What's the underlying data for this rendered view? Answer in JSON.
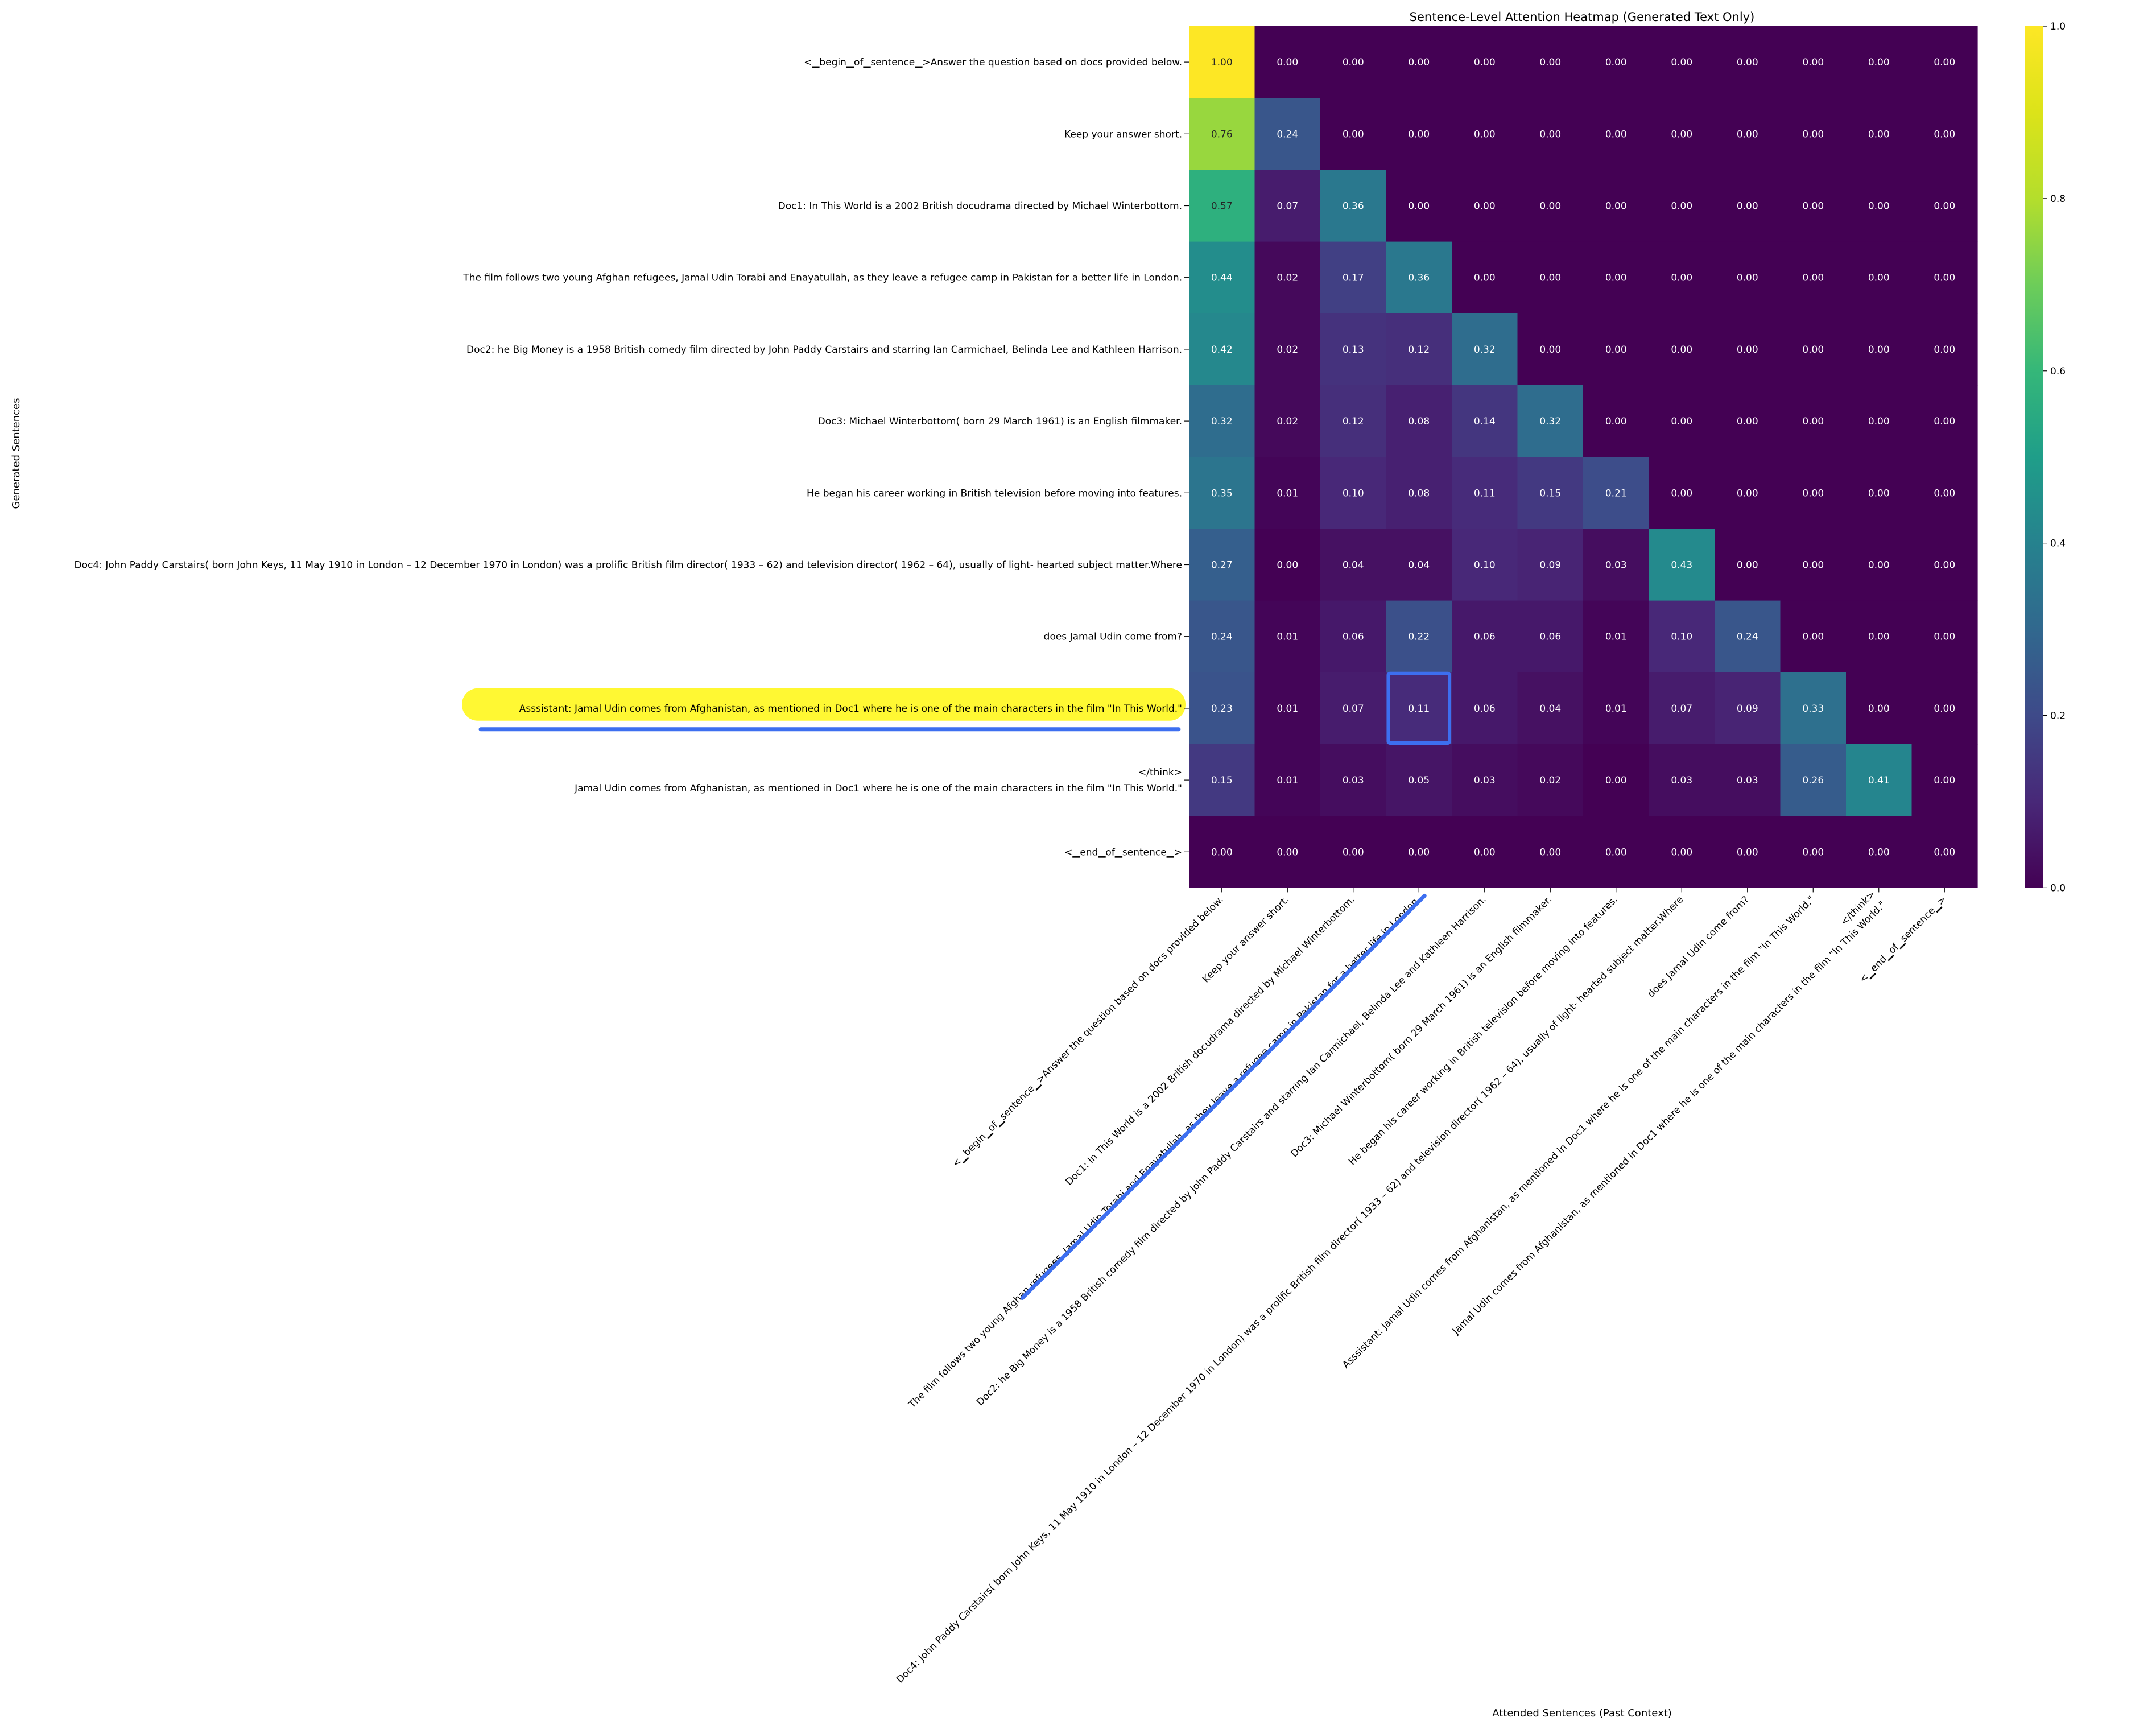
{
  "chart_data": {
    "type": "heatmap",
    "title": "Sentence-Level Attention Heatmap (Generated Text Only)",
    "xlabel": "Attended Sentences (Past Context)",
    "ylabel": "Generated Sentences",
    "row_labels": [
      "<▁begin▁of▁sentence▁>Answer the question based on docs provided below.",
      "Keep your answer short.",
      "Doc1: In This World is a 2002 British docudrama directed by Michael Winterbottom.",
      "The film follows two young Afghan refugees, Jamal Udin Torabi and Enayatullah, as they leave a refugee camp in Pakistan for a better life in London.",
      "Doc2: he Big Money is a 1958 British comedy film directed by John Paddy Carstairs and starring Ian Carmichael, Belinda Lee and Kathleen Harrison.",
      "Doc3: Michael Winterbottom( born 29 March 1961) is an English filmmaker.",
      "He began his career working in British television before moving into features.",
      "Doc4: John Paddy Carstairs( born John Keys, 11 May 1910 in London – 12 December 1970 in London) was a prolific British film director( 1933 – 62) and television director( 1962 – 64), usually of light- hearted subject matter.Where",
      "does Jamal Udin come from?",
      "Asssistant:  Jamal Udin comes from Afghanistan, as mentioned in Doc1 where he is one of the main characters in the film \"In This World.\"",
      "</think>\nJamal Udin comes from Afghanistan, as mentioned in Doc1 where he is one of the main characters in the film \"In This World.\"",
      "<▁end▁of▁sentence▁>"
    ],
    "col_labels": [
      "<▁begin▁of▁sentence▁>Answer the question based on docs provided below.",
      "Keep your answer short.",
      "Doc1: In This World is a 2002 British docudrama directed by Michael Winterbottom.",
      "The film follows two young Afghan refugees, Jamal Udin Torabi and Enayatullah, as they leave a refugee camp in Pakistan for a better life in London.",
      "Doc2: he Big Money is a 1958 British comedy film directed by John Paddy Carstairs and starring Ian Carmichael, Belinda Lee and Kathleen Harrison.",
      "Doc3: Michael Winterbottom( born 29 March 1961) is an English filmmaker.",
      "He began his career working in British television before moving into features.",
      "Doc4: John Paddy Carstairs( born John Keys, 11 May 1910 in London – 12 December 1970 in London) was a prolific British film director( 1933 – 62) and television director( 1962 – 64), usually of light- hearted subject matter.Where",
      "does Jamal Udin come from?",
      "Asssistant:  Jamal Udin comes from Afghanistan, as mentioned in Doc1 where he is one of the main characters in the film \"In This World.\"",
      "</think>\nJamal Udin comes from Afghanistan, as mentioned in Doc1 where he is one of the main characters in the film \"In This World.\"",
      "<▁end▁of▁sentence▁>"
    ],
    "values": [
      [
        1.0,
        0.0,
        0.0,
        0.0,
        0.0,
        0.0,
        0.0,
        0.0,
        0.0,
        0.0,
        0.0,
        0.0
      ],
      [
        0.76,
        0.24,
        0.0,
        0.0,
        0.0,
        0.0,
        0.0,
        0.0,
        0.0,
        0.0,
        0.0,
        0.0
      ],
      [
        0.57,
        0.07,
        0.36,
        0.0,
        0.0,
        0.0,
        0.0,
        0.0,
        0.0,
        0.0,
        0.0,
        0.0
      ],
      [
        0.44,
        0.02,
        0.17,
        0.36,
        0.0,
        0.0,
        0.0,
        0.0,
        0.0,
        0.0,
        0.0,
        0.0
      ],
      [
        0.42,
        0.02,
        0.13,
        0.12,
        0.32,
        0.0,
        0.0,
        0.0,
        0.0,
        0.0,
        0.0,
        0.0
      ],
      [
        0.32,
        0.02,
        0.12,
        0.08,
        0.14,
        0.32,
        0.0,
        0.0,
        0.0,
        0.0,
        0.0,
        0.0
      ],
      [
        0.35,
        0.01,
        0.1,
        0.08,
        0.11,
        0.15,
        0.21,
        0.0,
        0.0,
        0.0,
        0.0,
        0.0
      ],
      [
        0.27,
        0.0,
        0.04,
        0.04,
        0.1,
        0.09,
        0.03,
        0.43,
        0.0,
        0.0,
        0.0,
        0.0
      ],
      [
        0.24,
        0.01,
        0.06,
        0.22,
        0.06,
        0.06,
        0.01,
        0.1,
        0.24,
        0.0,
        0.0,
        0.0
      ],
      [
        0.23,
        0.01,
        0.07,
        0.11,
        0.06,
        0.04,
        0.01,
        0.07,
        0.09,
        0.33,
        0.0,
        0.0
      ],
      [
        0.15,
        0.01,
        0.03,
        0.05,
        0.03,
        0.02,
        0.0,
        0.03,
        0.03,
        0.26,
        0.41,
        0.0
      ],
      [
        0.0,
        0.0,
        0.0,
        0.0,
        0.0,
        0.0,
        0.0,
        0.0,
        0.0,
        0.0,
        0.0,
        0.0
      ]
    ],
    "vmin": 0.0,
    "vmax": 1.0,
    "colormap": "viridis",
    "colorbar_ticks": [
      "0.0",
      "0.2",
      "0.4",
      "0.6",
      "0.8",
      "1.0"
    ],
    "annotations": {
      "highlighted_row": 9,
      "highlighted_row_color": "#fff833",
      "boxed_cell": [
        9,
        3
      ],
      "boxed_cell_color": "#3d6ff0",
      "underlined_column": 3,
      "underline_color": "#3d6ff0"
    }
  }
}
